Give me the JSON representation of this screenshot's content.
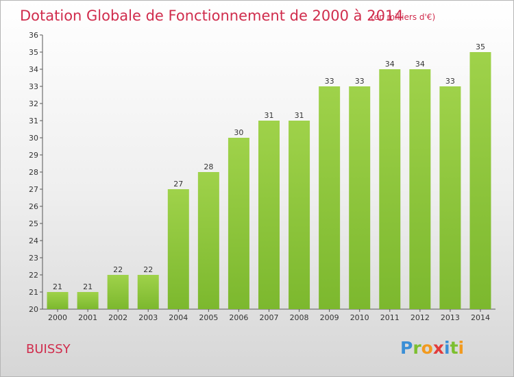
{
  "chart_data": {
    "type": "bar",
    "title": "Dotation Globale de Fonctionnement de 2000 à 2014",
    "subtitle": "(en milliers d'€)",
    "categories": [
      "2000",
      "2001",
      "2002",
      "2003",
      "2004",
      "2005",
      "2006",
      "2007",
      "2008",
      "2009",
      "2010",
      "2011",
      "2012",
      "2013",
      "2014"
    ],
    "values": [
      21,
      21,
      22,
      22,
      27,
      28,
      30,
      31,
      31,
      33,
      33,
      34,
      34,
      33,
      35
    ],
    "ylim": [
      20,
      36
    ],
    "yticks": [
      20,
      21,
      22,
      23,
      24,
      25,
      26,
      27,
      28,
      29,
      30,
      31,
      32,
      33,
      34,
      35,
      36
    ],
    "grid": false,
    "legend": "none",
    "bar_color": "#7cb82e",
    "bar_color_light": "#9fd24a"
  },
  "footer": {
    "town": "BUISSY",
    "logo": {
      "letters": [
        "P",
        "r",
        "o",
        "x",
        "i",
        "t",
        "i"
      ],
      "colors": [
        "#3a8fd6",
        "#7cbf2f",
        "#f29a1f",
        "#e23b3b",
        "#3a8fd6",
        "#7cbf2f",
        "#f29a1f"
      ]
    }
  },
  "colors": {
    "accent": "#d02c4c",
    "axis": "#333333"
  }
}
